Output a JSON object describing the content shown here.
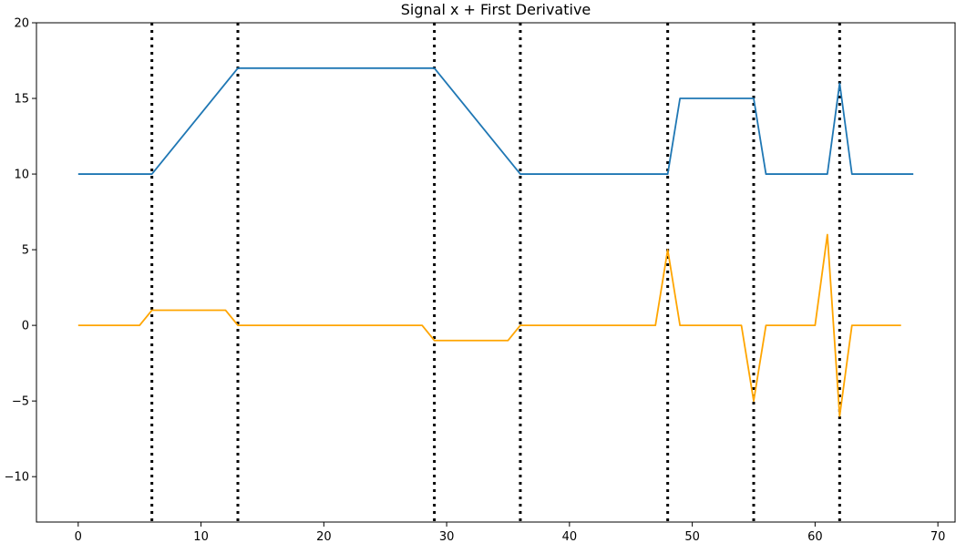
{
  "chart_data": {
    "type": "line",
    "title": "Signal x + First Derivative",
    "xlabel": "",
    "ylabel": "",
    "xlim": [
      -3.4,
      71.4
    ],
    "ylim": [
      -13,
      20
    ],
    "xticks": [
      0,
      10,
      20,
      30,
      40,
      50,
      60,
      70
    ],
    "yticks": [
      -10,
      -5,
      0,
      5,
      10,
      15,
      20
    ],
    "grid": false,
    "legend": "none",
    "series": [
      {
        "color": "#1f77b4",
        "x": [
          0,
          6,
          13,
          29,
          36,
          48,
          49,
          55,
          56,
          61,
          62,
          63,
          68
        ],
        "y": [
          10,
          10,
          17,
          17,
          10,
          10,
          15,
          15,
          10,
          10,
          16,
          10,
          10
        ]
      },
      {
        "color": "#ffa500",
        "x": [
          0,
          5,
          6,
          12,
          13,
          28,
          29,
          35,
          36,
          47,
          48,
          49,
          54,
          55,
          56,
          60,
          61,
          62,
          63,
          67
        ],
        "y": [
          0,
          0,
          1,
          1,
          0,
          0,
          -1,
          -1,
          0,
          0,
          5,
          0,
          0,
          -5,
          0,
          0,
          6,
          -6,
          0,
          0
        ]
      }
    ],
    "vlines": {
      "x": [
        6,
        13,
        29,
        36,
        48,
        55,
        62
      ],
      "style": "dotted",
      "color": "#000000"
    }
  }
}
